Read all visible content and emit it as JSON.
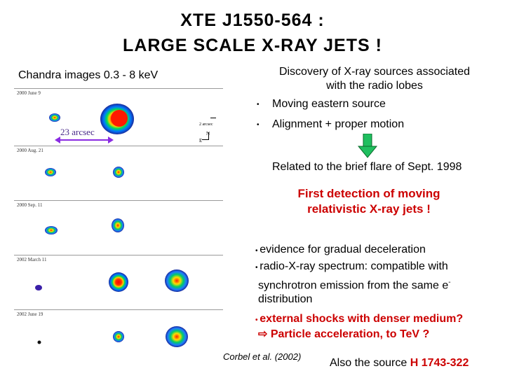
{
  "title": {
    "line1": "XTE J1550-564 :",
    "line2": "LARGE SCALE X-RAY JETS !"
  },
  "left": {
    "subtitle": "Chandra images 0.3 - 8 keV",
    "scale_label": "23 arcsec",
    "scale_bar_label": "2 arcsec",
    "compass_n": "N",
    "compass_e": "E",
    "panels": [
      {
        "date": "2000 June 9"
      },
      {
        "date": "2000 Aug. 21"
      },
      {
        "date": "2000 Sep. 11"
      },
      {
        "date": "2002 March 11"
      },
      {
        "date": "2002 June 19"
      }
    ],
    "citation": "Corbel et al. (2002)"
  },
  "right": {
    "intro_line1": "Discovery of X-ray sources associated",
    "intro_line2": "with the radio lobes",
    "bullet1": "Moving eastern source",
    "bullet2": "Alignment + proper motion",
    "related": "Related to the brief flare of Sept. 1998",
    "highlight_line1": "First detection of moving",
    "highlight_line2": "relativistic X-ray jets !",
    "point1": "evidence for gradual deceleration",
    "point2_line1": "radio-X-ray spectrum: compatible with",
    "point2_line2": "synchrotron emission from the same e",
    "point2_sup": "-",
    "point2_line3": "distribution",
    "point3": "external shocks with denser medium?",
    "point4": "Particle acceleration, to TeV ?",
    "also_prefix": "Also the source ",
    "also_source": "H 1743-322"
  },
  "colors": {
    "accent_red": "#cc0000",
    "scale_bar": "#8a2be2",
    "arrow_green": "#1fbf5f"
  }
}
